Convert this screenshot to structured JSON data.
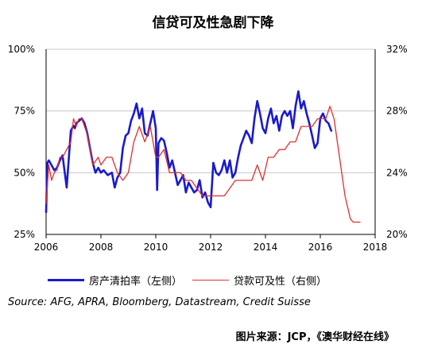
{
  "chart_data": {
    "type": "line",
    "title": "信贷可及性急剧下降",
    "x_ticks": [
      "2006",
      "2008",
      "2010",
      "2012",
      "2014",
      "2016",
      "2018"
    ],
    "y_left_ticks": [
      "100%",
      "75%",
      "50%",
      "25%"
    ],
    "y_right_ticks": [
      "32%",
      "28%",
      "24%",
      "20%"
    ],
    "xlim": [
      2006,
      2018
    ],
    "ylim_left": [
      25,
      100
    ],
    "ylim_right": [
      20,
      32
    ],
    "grid": "horizontal",
    "legend_position": "bottom",
    "series": [
      {
        "name": "房产清拍率（左侧）",
        "axis": "left",
        "color": "#1a1acc",
        "x": [
          2006.0,
          2006.05,
          2006.1,
          2006.2,
          2006.3,
          2006.4,
          2006.5,
          2006.6,
          2006.75,
          2006.9,
          2007.0,
          2007.05,
          2007.1,
          2007.2,
          2007.3,
          2007.4,
          2007.5,
          2007.6,
          2007.7,
          2007.8,
          2007.9,
          2008.0,
          2008.1,
          2008.25,
          2008.4,
          2008.5,
          2008.6,
          2008.7,
          2008.8,
          2008.9,
          2009.0,
          2009.1,
          2009.2,
          2009.3,
          2009.4,
          2009.5,
          2009.6,
          2009.7,
          2009.8,
          2009.9,
          2010.0,
          2010.05,
          2010.1,
          2010.2,
          2010.3,
          2010.4,
          2010.5,
          2010.6,
          2010.7,
          2010.8,
          2010.9,
          2011.0,
          2011.1,
          2011.2,
          2011.3,
          2011.4,
          2011.5,
          2011.6,
          2011.7,
          2011.8,
          2011.9,
          2012.0,
          2012.1,
          2012.2,
          2012.3,
          2012.4,
          2012.5,
          2012.6,
          2012.7,
          2012.8,
          2012.9,
          2013.0,
          2013.1,
          2013.2,
          2013.3,
          2013.4,
          2013.5,
          2013.6,
          2013.7,
          2013.8,
          2013.9,
          2014.0,
          2014.1,
          2014.2,
          2014.3,
          2014.4,
          2014.5,
          2014.6,
          2014.7,
          2014.8,
          2014.9,
          2015.0,
          2015.1,
          2015.2,
          2015.3,
          2015.4,
          2015.5,
          2015.6,
          2015.7,
          2015.8,
          2015.9,
          2016.0,
          2016.1,
          2016.2,
          2016.3,
          2016.4
        ],
        "values": [
          34,
          54,
          55,
          53,
          51,
          52,
          55,
          57,
          44,
          67,
          69,
          68,
          70,
          71,
          72,
          70,
          66,
          60,
          54,
          50,
          52,
          50,
          51,
          49,
          50,
          44,
          48,
          50,
          60,
          65,
          66,
          71,
          74,
          78,
          72,
          76,
          66,
          65,
          70,
          75,
          68,
          43,
          62,
          64,
          63,
          58,
          52,
          55,
          50,
          45,
          47,
          49,
          42,
          46,
          44,
          42,
          43,
          47,
          40,
          42,
          38,
          36,
          54,
          50,
          49,
          51,
          55,
          50,
          55,
          48,
          50,
          56,
          61,
          64,
          67,
          65,
          62,
          72,
          79,
          74,
          68,
          66,
          72,
          76,
          70,
          73,
          67,
          73,
          75,
          73,
          75,
          68,
          77,
          83,
          76,
          79,
          74,
          70,
          65,
          60,
          62,
          72,
          74,
          71,
          70,
          67
        ]
      },
      {
        "name": "贷款可及性（右侧）",
        "axis": "right",
        "color": "#e03030",
        "x": [
          2006.0,
          2006.1,
          2006.2,
          2006.3,
          2006.4,
          2006.5,
          2006.6,
          2006.75,
          2006.9,
          2007.0,
          2007.1,
          2007.2,
          2007.3,
          2007.5,
          2007.7,
          2007.9,
          2008.0,
          2008.2,
          2008.4,
          2008.6,
          2008.8,
          2009.0,
          2009.2,
          2009.4,
          2009.6,
          2009.8,
          2010.0,
          2010.1,
          2010.3,
          2010.5,
          2010.7,
          2010.9,
          2011.1,
          2011.3,
          2011.5,
          2011.7,
          2011.9,
          2012.1,
          2012.3,
          2012.5,
          2012.7,
          2012.9,
          2013.1,
          2013.3,
          2013.5,
          2013.7,
          2013.9,
          2014.1,
          2014.3,
          2014.5,
          2014.7,
          2014.9,
          2015.1,
          2015.3,
          2015.5,
          2015.7,
          2015.9,
          2016.0,
          2016.2,
          2016.35,
          2016.5,
          2016.7,
          2016.9,
          2017.1,
          2017.2,
          2017.3,
          2017.45
        ],
        "values": [
          22,
          24.5,
          23.5,
          24,
          24.2,
          25,
          25,
          25.5,
          26,
          27.5,
          27,
          27.5,
          27.5,
          26.5,
          24.5,
          25,
          24.5,
          25,
          25,
          24,
          23.5,
          24,
          26,
          27,
          26,
          27,
          25,
          25,
          25.5,
          24,
          24,
          24,
          23.5,
          23.5,
          23,
          22.5,
          22.5,
          22.5,
          22.5,
          22.5,
          23,
          23.5,
          23.5,
          23.5,
          23.5,
          24.5,
          23.5,
          25,
          25,
          25.5,
          25.5,
          26,
          26,
          27,
          27,
          27,
          27.5,
          27.5,
          27.5,
          28.3,
          27.5,
          25,
          22.5,
          21,
          20.8,
          20.8,
          20.8
        ]
      }
    ]
  },
  "notes": {
    "source": "Source: AFG, APRA, Bloomberg, Datastream, Credit Suisse",
    "credit": "图片来源：JCP，《澳华财经在线》"
  }
}
